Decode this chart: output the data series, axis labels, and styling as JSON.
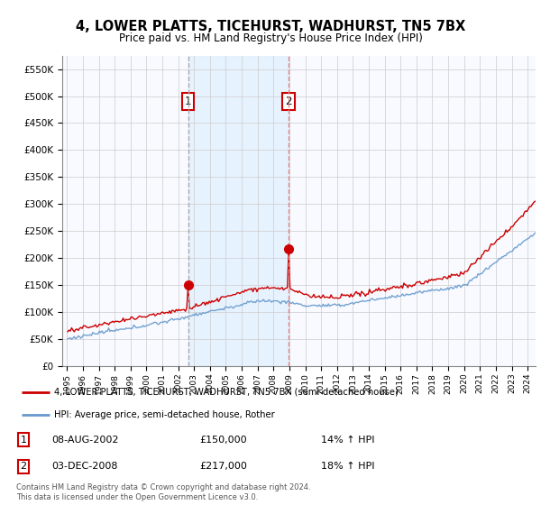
{
  "title": "4, LOWER PLATTS, TICEHURST, WADHURST, TN5 7BX",
  "subtitle": "Price paid vs. HM Land Registry's House Price Index (HPI)",
  "legend_line1": "4, LOWER PLATTS, TICEHURST, WADHURST, TN5 7BX (semi-detached house)",
  "legend_line2": "HPI: Average price, semi-detached house, Rother",
  "purchase1_date": "08-AUG-2002",
  "purchase1_price": 150000,
  "purchase1_label": "14% ↑ HPI",
  "purchase2_date": "03-DEC-2008",
  "purchase2_price": 217000,
  "purchase2_label": "18% ↑ HPI",
  "footer": "Contains HM Land Registry data © Crown copyright and database right 2024.\nThis data is licensed under the Open Government Licence v3.0.",
  "ylim": [
    0,
    575000
  ],
  "red_color": "#cc0000",
  "blue_color": "#6699cc",
  "blue_fill": "#ddeeff",
  "vline1_color": "#aaaaaa",
  "vline2_color": "#dd8888",
  "background_color": "#f8faff",
  "plot_bg": "#ffffff",
  "grid_color": "#cccccc"
}
